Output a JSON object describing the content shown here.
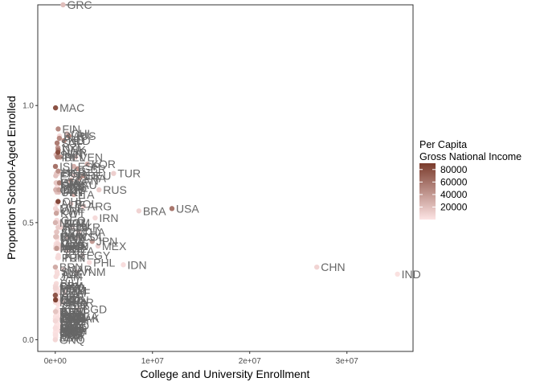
{
  "chart_data": {
    "type": "scatter",
    "xlabel": "College and University Enrollment",
    "ylabel": "Proportion School-Aged Enrolled",
    "xlim": [
      -1800000,
      36800000
    ],
    "ylim": [
      -0.05,
      1.43
    ],
    "x_ticks": [
      {
        "value": 0,
        "label": "0e+00"
      },
      {
        "value": 10000000,
        "label": "1e+07"
      },
      {
        "value": 20000000,
        "label": "2e+07"
      },
      {
        "value": 30000000,
        "label": "3e+07"
      }
    ],
    "y_ticks": [
      {
        "value": 0.0,
        "label": "0.0"
      },
      {
        "value": 0.5,
        "label": "0.5"
      },
      {
        "value": 1.0,
        "label": "1.0"
      }
    ],
    "grid": false,
    "legend": {
      "title_lines": [
        "Per Capita",
        "Gross National Income"
      ],
      "placement": "right",
      "type": "colorbar",
      "min": 0,
      "max": 90000,
      "color_low": "#fde4e4",
      "color_high": "#7a3b2c",
      "ticks": [
        {
          "value": 20000,
          "label": "20000"
        },
        {
          "value": 40000,
          "label": "40000"
        },
        {
          "value": 60000,
          "label": "60000"
        },
        {
          "value": 80000,
          "label": "80000"
        }
      ]
    },
    "points": [
      {
        "label": "GRC",
        "x": 800000,
        "y": 1.43,
        "gni": 20000
      },
      {
        "label": "MAC",
        "x": 30000,
        "y": 0.99,
        "gni": 78000
      },
      {
        "label": "FIN",
        "x": 300000,
        "y": 0.9,
        "gni": 48000
      },
      {
        "label": "AUS",
        "x": 1400000,
        "y": 0.87,
        "gni": 54000
      },
      {
        "label": "NLD",
        "x": 900000,
        "y": 0.85,
        "gni": 50000
      },
      {
        "label": "NOR",
        "x": 280000,
        "y": 0.8,
        "gni": 80000
      },
      {
        "label": "TUR",
        "x": 6000000,
        "y": 0.71,
        "gni": 11000
      },
      {
        "label": "DEU",
        "x": 2900000,
        "y": 0.7,
        "gni": 46000
      },
      {
        "label": "RUS",
        "x": 4500000,
        "y": 0.64,
        "gni": 12000
      },
      {
        "label": "BRA",
        "x": 8600000,
        "y": 0.55,
        "gni": 9000
      },
      {
        "label": "USA",
        "x": 12000000,
        "y": 0.56,
        "gni": 58000
      },
      {
        "label": "JPN",
        "x": 3800000,
        "y": 0.42,
        "gni": 39000
      },
      {
        "label": "MEX",
        "x": 4400000,
        "y": 0.4,
        "gni": 9000
      },
      {
        "label": "PHL",
        "x": 3500000,
        "y": 0.33,
        "gni": 3500
      },
      {
        "label": "IDN",
        "x": 7000000,
        "y": 0.32,
        "gni": 3500
      },
      {
        "label": "CHN",
        "x": 26900000,
        "y": 0.31,
        "gni": 8500
      },
      {
        "label": "IND",
        "x": 35200000,
        "y": 0.28,
        "gni": 1800
      },
      {
        "label": "KOR",
        "x": 3300000,
        "y": 0.75,
        "gni": 28000
      },
      {
        "label": "ESP",
        "x": 1900000,
        "y": 0.74,
        "gni": 28000
      },
      {
        "label": "GBR",
        "x": 2300000,
        "y": 0.73,
        "gni": 42000
      },
      {
        "label": "FRA",
        "x": 2500000,
        "y": 0.69,
        "gni": 41000
      },
      {
        "label": "ITA",
        "x": 1900000,
        "y": 0.62,
        "gni": 31000
      },
      {
        "label": "ARG",
        "x": 2900000,
        "y": 0.57,
        "gni": 12000
      },
      {
        "label": "POL",
        "x": 1600000,
        "y": 0.58,
        "gni": 13000
      },
      {
        "label": "IRN",
        "x": 4100000,
        "y": 0.52,
        "gni": 5500
      },
      {
        "label": "UKR",
        "x": 1800000,
        "y": 0.48,
        "gni": 2500
      },
      {
        "label": "COL",
        "x": 2300000,
        "y": 0.44,
        "gni": 6000
      },
      {
        "label": "EGY",
        "x": 2800000,
        "y": 0.36,
        "gni": 3000
      },
      {
        "label": "THA",
        "x": 2400000,
        "y": 0.46,
        "gni": 6000
      },
      {
        "label": "VNM",
        "x": 2200000,
        "y": 0.29,
        "gni": 2000
      },
      {
        "label": "BGD",
        "x": 2400000,
        "y": 0.13,
        "gni": 1300
      },
      {
        "label": "NGA",
        "x": 1500000,
        "y": 0.1,
        "gni": 2000
      },
      {
        "label": "PAK",
        "x": 1900000,
        "y": 0.09,
        "gni": 1500
      },
      {
        "label": "SAU",
        "x": 1500000,
        "y": 0.66,
        "gni": 21000
      },
      {
        "label": "CHL",
        "x": 1200000,
        "y": 0.88,
        "gni": 14000
      },
      {
        "label": "ALB",
        "x": 150000,
        "y": 0.58,
        "gni": 4500
      },
      {
        "label": "AUT",
        "x": 420000,
        "y": 0.86,
        "gni": 48000
      },
      {
        "label": "BEL",
        "x": 500000,
        "y": 0.78,
        "gni": 45000
      },
      {
        "label": "CHE",
        "x": 290000,
        "y": 0.59,
        "gni": 83000
      },
      {
        "label": "DNK",
        "x": 300000,
        "y": 0.81,
        "gni": 60000
      },
      {
        "label": "SWE",
        "x": 430000,
        "y": 0.67,
        "gni": 55000
      },
      {
        "label": "IRL",
        "x": 220000,
        "y": 0.78,
        "gni": 55000
      },
      {
        "label": "ISR",
        "x": 380000,
        "y": 0.64,
        "gni": 38000
      },
      {
        "label": "CAN",
        "x": 1600000,
        "y": 0.68,
        "gni": 46000
      },
      {
        "label": "NZL",
        "x": 270000,
        "y": 0.82,
        "gni": 40000
      },
      {
        "label": "PRT",
        "x": 350000,
        "y": 0.63,
        "gni": 20000
      },
      {
        "label": "CZE",
        "x": 360000,
        "y": 0.64,
        "gni": 18000
      },
      {
        "label": "HUN",
        "x": 290000,
        "y": 0.48,
        "gni": 13000
      },
      {
        "label": "SVK",
        "x": 160000,
        "y": 0.46,
        "gni": 17000
      },
      {
        "label": "SVN",
        "x": 80000,
        "y": 0.79,
        "gni": 23000
      },
      {
        "label": "EST",
        "x": 50000,
        "y": 0.7,
        "gni": 18000
      },
      {
        "label": "LVA",
        "x": 85000,
        "y": 0.67,
        "gni": 15000
      },
      {
        "label": "LTU",
        "x": 130000,
        "y": 0.71,
        "gni": 15000
      },
      {
        "label": "BLR",
        "x": 430000,
        "y": 0.87,
        "gni": 5000
      },
      {
        "label": "KAZ",
        "x": 480000,
        "y": 0.5,
        "gni": 8000
      },
      {
        "label": "ROU",
        "x": 540000,
        "y": 0.48,
        "gni": 10000
      },
      {
        "label": "BGR",
        "x": 280000,
        "y": 0.71,
        "gni": 7500
      },
      {
        "label": "SRB",
        "x": 240000,
        "y": 0.66,
        "gni": 5500
      },
      {
        "label": "HRV",
        "x": 160000,
        "y": 0.67,
        "gni": 13000
      },
      {
        "label": "MNG",
        "x": 160000,
        "y": 0.65,
        "gni": 3500
      },
      {
        "label": "URY",
        "x": 160000,
        "y": 0.63,
        "gni": 15000
      },
      {
        "label": "CRI",
        "x": 210000,
        "y": 0.55,
        "gni": 11000
      },
      {
        "label": "PER",
        "x": 1900000,
        "y": 0.7,
        "gni": 6000
      },
      {
        "label": "VEN",
        "x": 2100000,
        "y": 0.78,
        "gni": 12000
      },
      {
        "label": "CUB",
        "x": 250000,
        "y": 0.41,
        "gni": 7000
      },
      {
        "label": "ECU",
        "x": 600000,
        "y": 0.4,
        "gni": 6000
      },
      {
        "label": "BOL",
        "x": 450000,
        "y": 0.39,
        "gni": 3000
      },
      {
        "label": "PAN",
        "x": 160000,
        "y": 0.44,
        "gni": 12000
      },
      {
        "label": "DOM",
        "x": 460000,
        "y": 0.5,
        "gni": 6500
      },
      {
        "label": "JOR",
        "x": 320000,
        "y": 0.36,
        "gni": 4000
      },
      {
        "label": "LBN",
        "x": 210000,
        "y": 0.4,
        "gni": 8000
      },
      {
        "label": "TUN",
        "x": 330000,
        "y": 0.35,
        "gni": 3500
      },
      {
        "label": "DZA",
        "x": 1300000,
        "y": 0.38,
        "gni": 4000
      },
      {
        "label": "MAR",
        "x": 800000,
        "y": 0.3,
        "gni": 3000
      },
      {
        "label": "MYS",
        "x": 1200000,
        "y": 0.44,
        "gni": 10000
      },
      {
        "label": "SGP",
        "x": 190000,
        "y": 0.84,
        "gni": 55000
      },
      {
        "label": "HKG",
        "x": 300000,
        "y": 0.72,
        "gni": 45000
      },
      {
        "label": "QAT",
        "x": 30000,
        "y": 0.17,
        "gni": 85000
      },
      {
        "label": "KWT",
        "x": 110000,
        "y": 0.54,
        "gni": 34000
      },
      {
        "label": "ARE",
        "x": 150000,
        "y": 0.39,
        "gni": 40000
      },
      {
        "label": "OMN",
        "x": 120000,
        "y": 0.44,
        "gni": 17000
      },
      {
        "label": "BHR",
        "x": 40000,
        "y": 0.44,
        "gni": 21000
      },
      {
        "label": "AZE",
        "x": 200000,
        "y": 0.28,
        "gni": 4500
      },
      {
        "label": "ARM",
        "x": 100000,
        "y": 0.46,
        "gni": 4000
      },
      {
        "label": "GEO",
        "x": 150000,
        "y": 0.51,
        "gni": 4000
      },
      {
        "label": "KGZ",
        "x": 200000,
        "y": 0.43,
        "gni": 1200
      },
      {
        "label": "UZB",
        "x": 300000,
        "y": 0.09,
        "gni": 2000
      },
      {
        "label": "TJK",
        "x": 200000,
        "y": 0.28,
        "gni": 1100
      },
      {
        "label": "MDA",
        "x": 90000,
        "y": 0.41,
        "gni": 2500
      },
      {
        "label": "MKD",
        "x": 60000,
        "y": 0.4,
        "gni": 5000
      },
      {
        "label": "BIH",
        "x": 110000,
        "y": 0.24,
        "gni": 5000
      },
      {
        "label": "MNE",
        "x": 25000,
        "y": 0.56,
        "gni": 7500
      },
      {
        "label": "LKA",
        "x": 300000,
        "y": 0.2,
        "gni": 4000
      },
      {
        "label": "NPL",
        "x": 400000,
        "y": 0.12,
        "gni": 800
      },
      {
        "label": "MMR",
        "x": 800000,
        "y": 0.16,
        "gni": 1300
      },
      {
        "label": "KHM",
        "x": 200000,
        "y": 0.13,
        "gni": 1200
      },
      {
        "label": "LAO",
        "x": 130000,
        "y": 0.17,
        "gni": 2300
      },
      {
        "label": "GHA",
        "x": 400000,
        "y": 0.16,
        "gni": 1800
      },
      {
        "label": "KEN",
        "x": 500000,
        "y": 0.04,
        "gni": 1400
      },
      {
        "label": "ETH",
        "x": 750000,
        "y": 0.08,
        "gni": 700
      },
      {
        "label": "TZA",
        "x": 200000,
        "y": 0.04,
        "gni": 900
      },
      {
        "label": "UGA",
        "x": 180000,
        "y": 0.05,
        "gni": 600
      },
      {
        "label": "ZAF",
        "x": 1000000,
        "y": 0.2,
        "gni": 6000
      },
      {
        "label": "SEN",
        "x": 160000,
        "y": 0.1,
        "gni": 1400
      },
      {
        "label": "CMR",
        "x": 300000,
        "y": 0.15,
        "gni": 1400
      },
      {
        "label": "CIV",
        "x": 200000,
        "y": 0.09,
        "gni": 1600
      },
      {
        "label": "SDN",
        "x": 600000,
        "y": 0.17,
        "gni": 1500
      },
      {
        "label": "MOZ",
        "x": 180000,
        "y": 0.07,
        "gni": 500
      },
      {
        "label": "MDG",
        "x": 120000,
        "y": 0.05,
        "gni": 450
      },
      {
        "label": "MWI",
        "x": 50000,
        "y": 0.01,
        "gni": 350
      },
      {
        "label": "NER",
        "x": 60000,
        "y": 0.03,
        "gni": 400
      },
      {
        "label": "MLI",
        "x": 100000,
        "y": 0.05,
        "gni": 800
      },
      {
        "label": "BFA",
        "x": 110000,
        "y": 0.06,
        "gni": 700
      },
      {
        "label": "TCD",
        "x": 40000,
        "y": 0.03,
        "gni": 700
      },
      {
        "label": "RWA",
        "x": 90000,
        "y": 0.08,
        "gni": 750
      },
      {
        "label": "BDI",
        "x": 50000,
        "y": 0.04,
        "gni": 300
      },
      {
        "label": "AFG",
        "x": 300000,
        "y": 0.1,
        "gni": 550
      },
      {
        "label": "IRQ",
        "x": 600000,
        "y": 0.16,
        "gni": 5000
      },
      {
        "label": "SYR",
        "x": 600000,
        "y": 0.4,
        "gni": 1800
      },
      {
        "label": "YEM",
        "x": 270000,
        "y": 0.1,
        "gni": 1000
      },
      {
        "label": "HND",
        "x": 190000,
        "y": 0.22,
        "gni": 2300
      },
      {
        "label": "GTM",
        "x": 270000,
        "y": 0.21,
        "gni": 4000
      },
      {
        "label": "SLV",
        "x": 180000,
        "y": 0.29,
        "gni": 3700
      },
      {
        "label": "NIC",
        "x": 150000,
        "y": 0.18,
        "gni": 2000
      },
      {
        "label": "PRY",
        "x": 250000,
        "y": 0.35,
        "gni": 5000
      },
      {
        "label": "JAM",
        "x": 75000,
        "y": 0.27,
        "gni": 5000
      },
      {
        "label": "TTO",
        "x": 40000,
        "y": 0.12,
        "gni": 17000
      },
      {
        "label": "MUS",
        "x": 45000,
        "y": 0.39,
        "gni": 10000
      },
      {
        "label": "BWA",
        "x": 50000,
        "y": 0.23,
        "gni": 7000
      },
      {
        "label": "NAM",
        "x": 60000,
        "y": 0.21,
        "gni": 5000
      },
      {
        "label": "CYP",
        "x": 45000,
        "y": 0.64,
        "gni": 27000
      },
      {
        "label": "MLT",
        "x": 15000,
        "y": 0.5,
        "gni": 26000
      },
      {
        "label": "LUX",
        "x": 7000,
        "y": 0.19,
        "gni": 75000
      },
      {
        "label": "ISL",
        "x": 19000,
        "y": 0.74,
        "gni": 60000
      },
      {
        "label": "BRN",
        "x": 12000,
        "y": 0.31,
        "gni": 30000
      },
      {
        "label": "MDV",
        "x": 10000,
        "y": 0.22,
        "gni": 9000
      },
      {
        "label": "BTN",
        "x": 12000,
        "y": 0.12,
        "gni": 3000
      },
      {
        "label": "FJI",
        "x": 20000,
        "y": 0.16,
        "gni": 5000
      },
      {
        "label": "PNG",
        "x": 40000,
        "y": 0.02,
        "gni": 2500
      },
      {
        "label": "SLB",
        "x": 8000,
        "y": 0.02,
        "gni": 1900
      },
      {
        "label": "TLS",
        "x": 28000,
        "y": 0.18,
        "gni": 2000
      },
      {
        "label": "LSO",
        "x": 30000,
        "y": 0.1,
        "gni": 1300
      },
      {
        "label": "SWZ",
        "x": 12000,
        "y": 0.05,
        "gni": 3500
      },
      {
        "label": "GMB",
        "x": 8000,
        "y": 0.03,
        "gni": 700
      },
      {
        "label": "GIN",
        "x": 110000,
        "y": 0.11,
        "gni": 800
      },
      {
        "label": "BEN",
        "x": 120000,
        "y": 0.12,
        "gni": 1000
      },
      {
        "label": "TGO",
        "x": 70000,
        "y": 0.1,
        "gni": 700
      },
      {
        "label": "SLE",
        "x": 50000,
        "y": 0.02,
        "gni": 500
      },
      {
        "label": "LBR",
        "x": 45000,
        "y": 0.01,
        "gni": 600
      },
      {
        "label": "MRT",
        "x": 20000,
        "y": 0.05,
        "gni": 1300
      },
      {
        "label": "ERI",
        "x": 12000,
        "y": 0.03,
        "gni": 500
      },
      {
        "label": "DJI",
        "x": 8000,
        "y": 0.05,
        "gni": 3000
      },
      {
        "label": "COM",
        "x": 9000,
        "y": 0.09,
        "gni": 1400
      },
      {
        "label": "CPV",
        "x": 12000,
        "y": 0.23,
        "gni": 3300
      },
      {
        "label": "ZMB",
        "x": 60000,
        "y": 0.04,
        "gni": 1500
      },
      {
        "label": "ZWE",
        "x": 100000,
        "y": 0.08,
        "gni": 1200
      },
      {
        "label": "AGO",
        "x": 220000,
        "y": 0.09,
        "gni": 3500
      },
      {
        "label": "COD",
        "x": 500000,
        "y": 0.06,
        "gni": 450
      },
      {
        "label": "CAF",
        "x": 13000,
        "y": 0.03,
        "gni": 400
      },
      {
        "label": "GAB",
        "x": 10000,
        "y": 0.08,
        "gni": 7000
      },
      {
        "label": "COG",
        "x": 50000,
        "y": 0.1,
        "gni": 1800
      },
      {
        "label": "GNQ",
        "x": 2000,
        "y": 0.0,
        "gni": 7000
      }
    ]
  }
}
